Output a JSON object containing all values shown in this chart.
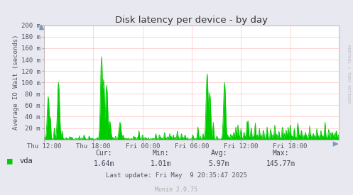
{
  "title": "Disk latency per device - by day",
  "ylabel": "Average IO Wait (seconds)",
  "bg_color": "#e8e8f0",
  "plot_bg_color": "#ffffff",
  "grid_color": "#ffaaaa",
  "line_color": "#00cc00",
  "fill_color": "#00cc00",
  "ylim": [
    0,
    200
  ],
  "ytick_labels": [
    "20 m",
    "40 m",
    "60 m",
    "80 m",
    "100 m",
    "120 m",
    "140 m",
    "160 m",
    "180 m",
    "200 m"
  ],
  "ytick_values": [
    20,
    40,
    60,
    80,
    100,
    120,
    140,
    160,
    180,
    200
  ],
  "xtick_labels": [
    "Thu 12:00",
    "Thu 18:00",
    "Fri 00:00",
    "Fri 06:00",
    "Fri 12:00",
    "Fri 18:00"
  ],
  "legend_label": "vda",
  "cur_label": "Cur:",
  "cur_val": "1.64m",
  "min_label": "Min:",
  "min_val": "1.01m",
  "avg_label": "Avg:",
  "avg_val": "5.97m",
  "max_label": "Max:",
  "max_val": "145.77m",
  "last_update": "Last update: Fri May  9 20:35:47 2025",
  "munin_version": "Munin 2.0.75",
  "title_color": "#333333",
  "axis_color": "#aaaaaa",
  "text_color": "#555566",
  "watermark": "RRDTOOL / TOBI OETIKER"
}
